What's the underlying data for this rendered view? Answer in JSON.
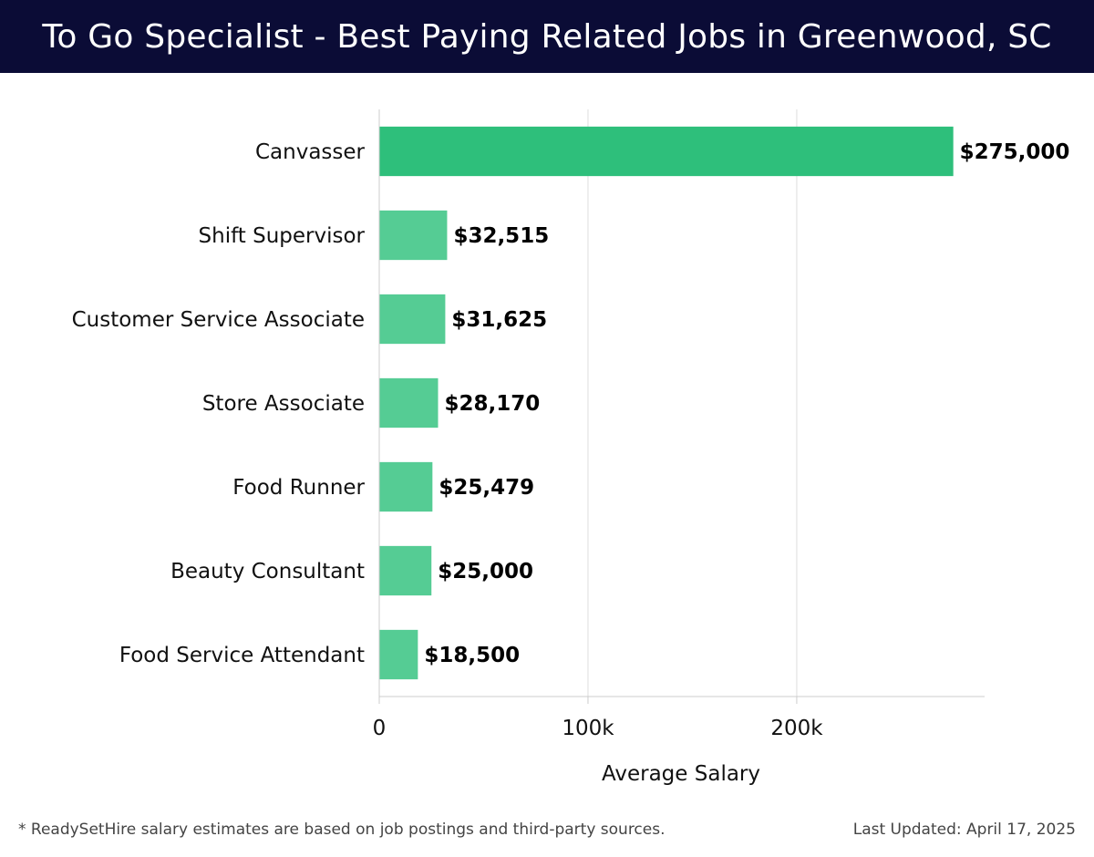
{
  "header": {
    "title": "To Go Specialist - Best Paying Related Jobs in Greenwood, SC"
  },
  "chart_data": {
    "type": "bar",
    "orientation": "horizontal",
    "title": "To Go Specialist - Best Paying Related Jobs in Greenwood, SC",
    "xlabel": "Average Salary",
    "ylabel": "",
    "categories": [
      "Canvasser",
      "Shift Supervisor",
      "Customer Service Associate",
      "Store Associate",
      "Food Runner",
      "Beauty Consultant",
      "Food Service Attendant"
    ],
    "values": [
      275000,
      32515,
      31625,
      28170,
      25479,
      25000,
      18500
    ],
    "value_labels": [
      "$275,000",
      "$32,515",
      "$31,625",
      "$28,170",
      "$25,479",
      "$25,000",
      "$18,500"
    ],
    "xlim": [
      0,
      290000
    ],
    "x_ticks": [
      0,
      100000,
      200000
    ],
    "x_tick_labels": [
      "0",
      "100k",
      "200k"
    ],
    "grid": true,
    "colors": {
      "highlight": "#2ebf7b",
      "bar": "#55cc94",
      "grid": "#dddddd",
      "axis": "#cccccc"
    }
  },
  "footer": {
    "note": "* ReadySetHire salary estimates are based on job postings and third-party sources.",
    "updated": "Last Updated: April 17, 2025"
  }
}
